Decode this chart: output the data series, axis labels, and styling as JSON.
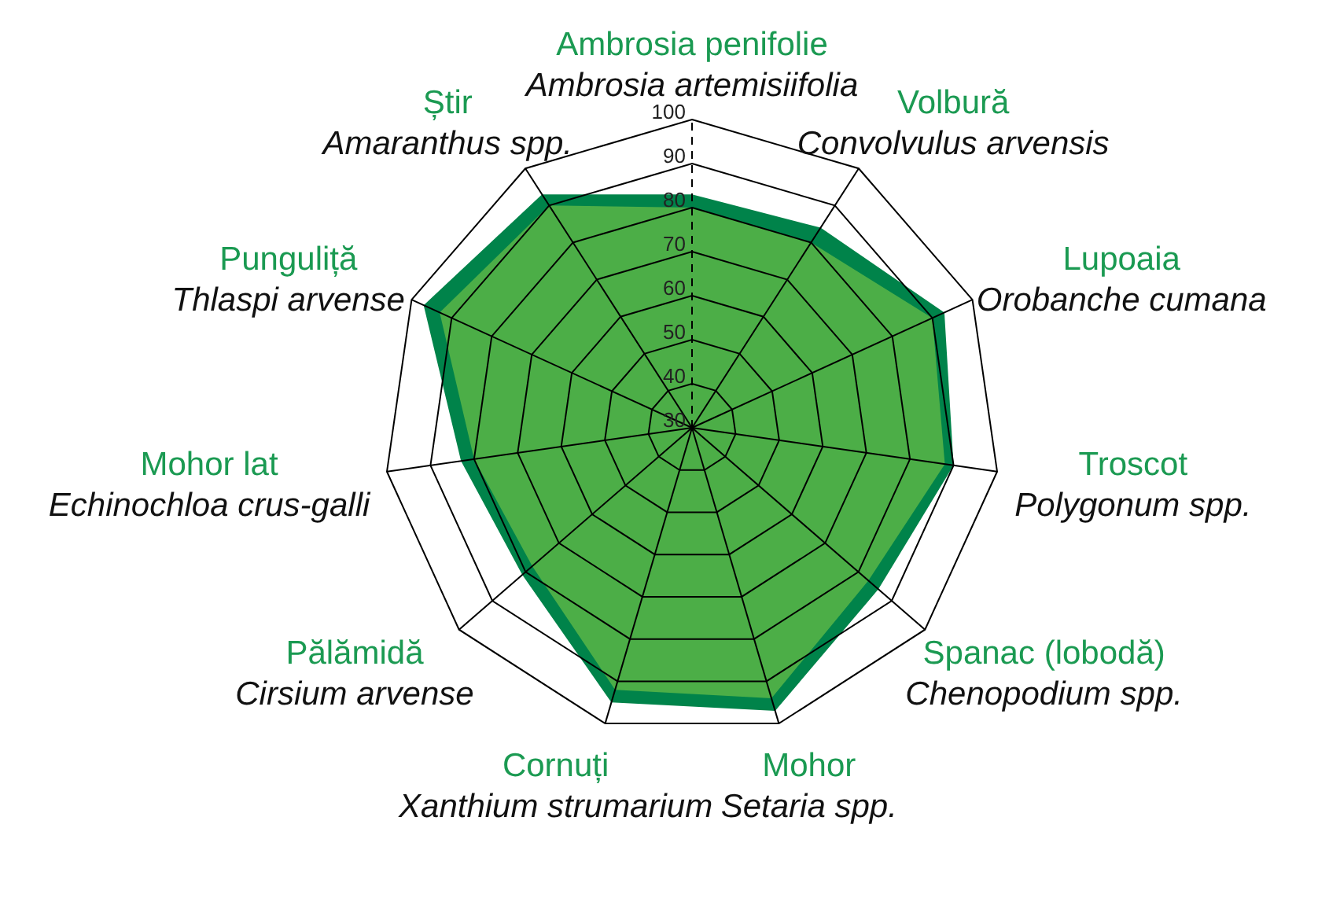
{
  "chart_data": {
    "type": "radar",
    "categories": [
      "Ambrosia penifolie\nAmbrosia artemisiifolia",
      "Volbură\nConvolvulus arvensis",
      "Lupoaia\nOrobanche cumana",
      "Troscot\nPolygonum spp.",
      "Spanac (lobodă)\nChenopodium spp.",
      "Mohor\nSetaria spp.",
      "Cornuți\nXanthium strumarium",
      "Pălămidă\nCirsium arvense",
      "Mohor lat\nEchinochloa crus-galli",
      "Punguliță\nThlaspi arvense",
      "Știr\nAmaranthus spp."
    ],
    "series": [
      {
        "color": "#4cae47",
        "values": [
          80,
          80,
          90,
          88,
          83,
          94,
          92,
          78,
          80,
          93,
          90
        ]
      },
      {
        "color": "#00834a",
        "values": [
          83,
          84,
          93,
          90,
          86,
          97,
          95,
          81,
          83,
          97,
          93
        ]
      }
    ],
    "ylim": [
      30,
      100
    ],
    "yticks": [
      30,
      40,
      50,
      60,
      70,
      80,
      90,
      100
    ],
    "grid": true
  }
}
